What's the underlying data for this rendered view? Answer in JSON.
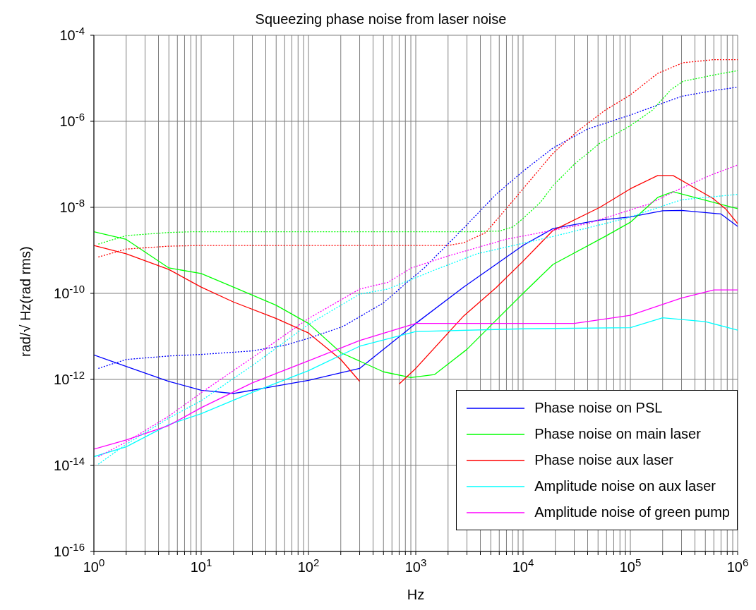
{
  "chart_data": {
    "type": "line",
    "title": "Squeezing phase noise from laser noise",
    "xlabel": "Hz",
    "ylabel": "rad/√ Hz(rad rms)",
    "log": "xy",
    "grid": true,
    "legend": "bottom right",
    "marker": "none",
    "xlim": [
      1,
      1000000
    ],
    "xticks": [
      {
        "value": 1,
        "label": "10$^{0}$"
      },
      {
        "value": 2,
        "label": null
      },
      {
        "value": 3,
        "label": null
      },
      {
        "value": 4,
        "label": null
      },
      {
        "value": 5,
        "label": null
      },
      {
        "value": 6,
        "label": null
      },
      {
        "value": 7,
        "label": null
      },
      {
        "value": 8,
        "label": null
      },
      {
        "value": 9,
        "label": null
      },
      {
        "value": 10,
        "label": "10$^{1}$"
      },
      {
        "value": 20,
        "label": null
      },
      {
        "value": 30,
        "label": null
      },
      {
        "value": 40,
        "label": null
      },
      {
        "value": 50,
        "label": null
      },
      {
        "value": 60,
        "label": null
      },
      {
        "value": 70,
        "label": null
      },
      {
        "value": 80,
        "label": null
      },
      {
        "value": 90,
        "label": null
      },
      {
        "value": 100,
        "label": "10$^{2}$"
      },
      {
        "value": 200,
        "label": null
      },
      {
        "value": 300,
        "label": null
      },
      {
        "value": 400,
        "label": null
      },
      {
        "value": 500,
        "label": null
      },
      {
        "value": 600,
        "label": null
      },
      {
        "value": 700,
        "label": null
      },
      {
        "value": 800,
        "label": null
      },
      {
        "value": 900,
        "label": null
      },
      {
        "value": 1000,
        "label": "10$^{3}$"
      },
      {
        "value": 2000,
        "label": null
      },
      {
        "value": 3000,
        "label": null
      },
      {
        "value": 4000,
        "label": null
      },
      {
        "value": 5000,
        "label": null
      },
      {
        "value": 6000,
        "label": null
      },
      {
        "value": 7000,
        "label": null
      },
      {
        "value": 8000,
        "label": null
      },
      {
        "value": 9000,
        "label": null
      },
      {
        "value": 10000,
        "label": "10$^{4}$"
      },
      {
        "value": 20000,
        "label": null
      },
      {
        "value": 30000,
        "label": null
      },
      {
        "value": 40000,
        "label": null
      },
      {
        "value": 50000,
        "label": null
      },
      {
        "value": 60000,
        "label": null
      },
      {
        "value": 70000,
        "label": null
      },
      {
        "value": 80000,
        "label": null
      },
      {
        "value": 90000,
        "label": null
      },
      {
        "value": 100000,
        "label": "10$^{5}$"
      },
      {
        "value": 200000,
        "label": null
      },
      {
        "value": 300000,
        "label": null
      },
      {
        "value": 400000,
        "label": null
      },
      {
        "value": 500000,
        "label": null
      },
      {
        "value": 600000,
        "label": null
      },
      {
        "value": 700000,
        "label": null
      },
      {
        "value": 800000,
        "label": null
      },
      {
        "value": 900000,
        "label": null
      },
      {
        "value": 1000000,
        "label": "10$^{6}$"
      }
    ],
    "ylim": [
      1e-16,
      0.0001
    ],
    "yticks": [
      {
        "value": 1e-16,
        "label": "10$^{-16}$"
      },
      {
        "value": 1e-14,
        "label": "10$^{-14}$"
      },
      {
        "value": 1e-12,
        "label": "10$^{-12}$"
      },
      {
        "value": 1e-10,
        "label": "10$^{-10}$"
      },
      {
        "value": 1e-08,
        "label": "10$^{-8}$"
      },
      {
        "value": 1e-06,
        "label": "10$^{-6}$"
      },
      {
        "value": 0.0001,
        "label": "10$^{-4}$"
      }
    ],
    "series": [
      {
        "name": "Phase noise on PSL",
        "color": "#0000ff",
        "line_style": "solid",
        "x": [
          1,
          2,
          5,
          10,
          20,
          50,
          100,
          300,
          1000,
          2800,
          10000,
          19000,
          50000,
          100000,
          200000,
          300000,
          700000,
          1000000
        ],
        "values": [
          3.7e-12,
          2e-12,
          9e-13,
          5.6e-13,
          4.7e-13,
          7e-13,
          9.5e-13,
          1.8e-12,
          2e-11,
          1.4e-10,
          1.3e-09,
          3.2e-09,
          5e-09,
          6e-09,
          8.3e-09,
          8.5e-09,
          7e-09,
          3.6e-09
        ]
      },
      {
        "name": "Phase noise on main laser",
        "color": "#00ff00",
        "line_style": "solid",
        "x": [
          1,
          2,
          5,
          10,
          20,
          50,
          100,
          200,
          500,
          900,
          1500,
          3000,
          10000,
          19000,
          58000,
          100000,
          180000,
          250000,
          1000000
        ],
        "values": [
          2.7e-09,
          1.8e-09,
          3.9e-10,
          2.9e-10,
          1.4e-10,
          5.3e-11,
          2e-11,
          4.2e-12,
          1.5e-12,
          1.1e-12,
          1.3e-12,
          5e-12,
          1e-10,
          4.7e-10,
          2.1e-09,
          4.5e-09,
          1.7e-08,
          2.3e-08,
          9.3e-09
        ]
      },
      {
        "name": "Phase noise aux laser",
        "color": "#ff0000",
        "line_style": "solid",
        "x": [
          1,
          2,
          5,
          10,
          20,
          50,
          100,
          200,
          300,
          500,
          700,
          1000,
          2800,
          5600,
          10000,
          19000,
          52000,
          100000,
          180000,
          250000,
          590000,
          780000,
          1000000
        ],
        "values": [
          1.3e-09,
          8.3e-10,
          3.6e-10,
          1.4e-10,
          6.3e-11,
          2.6e-11,
          1.2e-11,
          2.9e-12,
          9e-13,
          null,
          7.8e-13,
          1.8e-12,
          3e-11,
          1.35e-10,
          5.6e-10,
          2.9e-09,
          1e-08,
          2.7e-08,
          5.5e-08,
          5.5e-08,
          1.6e-08,
          9e-09,
          4.2e-09
        ]
      },
      {
        "name": "Amplitude noise on aux laser",
        "color": "#00ffff",
        "line_style": "solid",
        "x": [
          1,
          2,
          5,
          10,
          30,
          100,
          300,
          1000,
          10000,
          100000,
          200000,
          500000,
          1000000
        ],
        "values": [
          1.6e-14,
          2.7e-14,
          8.9e-14,
          1.6e-13,
          5e-13,
          1.6e-12,
          5.9e-12,
          1.3e-11,
          1.5e-11,
          1.6e-11,
          2.7e-11,
          2.2e-11,
          1.4e-11
        ]
      },
      {
        "name": "Amplitude noise of green pump",
        "color": "#ff00ff",
        "line_style": "solid",
        "x": [
          1,
          2,
          5,
          10,
          30,
          100,
          300,
          1000,
          30000,
          100000,
          300000,
          600000,
          1000000
        ],
        "values": [
          2.4e-14,
          3.9e-14,
          8.5e-14,
          2.2e-13,
          8.3e-13,
          2.7e-12,
          8e-12,
          2e-11,
          2e-11,
          3.1e-11,
          7.8e-11,
          1.2e-10,
          1.2e-10
        ]
      },
      {
        "color": "#0000ff",
        "line_style": "dotted",
        "x": [
          1.1,
          2,
          5,
          10,
          30,
          60,
          100,
          210,
          500,
          870,
          1200,
          2800,
          5600,
          10000,
          19000,
          40000,
          100000,
          300000,
          600000,
          1000000
        ],
        "values": [
          1.8e-12,
          2.9e-12,
          3.5e-12,
          3.8e-12,
          4.6e-12,
          6.2e-12,
          9e-12,
          1.7e-11,
          6e-11,
          2e-10,
          3.9e-10,
          3.3e-09,
          2e-08,
          6.9e-08,
          2.4e-07,
          6.6e-07,
          1.4e-06,
          3.8e-06,
          5.2e-06,
          6.2e-06
        ]
      },
      {
        "color": "#00ff00",
        "line_style": "dotted",
        "x": [
          1.1,
          2,
          5,
          8,
          3000,
          6000,
          8000,
          10000,
          14500,
          19000,
          30000,
          52000,
          100000,
          160000,
          240000,
          310000,
          660000,
          1000000
        ],
        "values": [
          1.4e-09,
          2.2e-09,
          2.6e-09,
          2.7e-09,
          2.7e-09,
          2.8e-09,
          3.5e-09,
          5.5e-09,
          1.3e-08,
          3.2e-08,
          1e-07,
          3.1e-07,
          7.9e-07,
          1.8e-06,
          5.5e-06,
          8.5e-06,
          1.25e-05,
          1.5e-05
        ]
      },
      {
        "color": "#ff0000",
        "line_style": "dotted",
        "x": [
          1.1,
          2,
          5,
          10,
          2000,
          2800,
          4500,
          7600,
          19000,
          32000,
          58000,
          100000,
          180000,
          310000,
          590000,
          1000000
        ],
        "values": [
          7e-10,
          1.07e-09,
          1.25e-09,
          1.3e-09,
          1.3e-09,
          1.5e-09,
          2.6e-09,
          1.2e-08,
          1.8e-07,
          5.8e-07,
          1.8e-06,
          4.1e-06,
          1.3e-05,
          2.3e-05,
          2.7e-05,
          2.7e-05
        ]
      },
      {
        "color": "#00ffff",
        "line_style": "dotted",
        "x": [
          1.1,
          2,
          5,
          10,
          30,
          100,
          300,
          550,
          1500,
          3700,
          19000,
          90000,
          300000,
          1000000
        ],
        "values": [
          1.07e-14,
          3.1e-14,
          1.26e-13,
          3.2e-13,
          2.1e-12,
          1.9e-11,
          9.6e-11,
          1.26e-10,
          3.5e-10,
          8.3e-10,
          2.1e-09,
          5.5e-09,
          1.5e-08,
          2e-08
        ]
      },
      {
        "color": "#ff00ff",
        "line_style": "dotted",
        "x": [
          1.1,
          2,
          5,
          10,
          30,
          100,
          300,
          550,
          910,
          2000,
          6900,
          40000,
          150000,
          300000,
          590000,
          1000000
        ],
        "values": [
          1.6e-14,
          3.5e-14,
          1.4e-13,
          4.9e-13,
          3.2e-12,
          2.6e-11,
          1.26e-10,
          1.8e-10,
          3.9e-10,
          7.4e-10,
          1.8e-09,
          4.2e-09,
          1.2e-08,
          2.8e-08,
          5.9e-08,
          9.6e-08
        ]
      }
    ]
  }
}
